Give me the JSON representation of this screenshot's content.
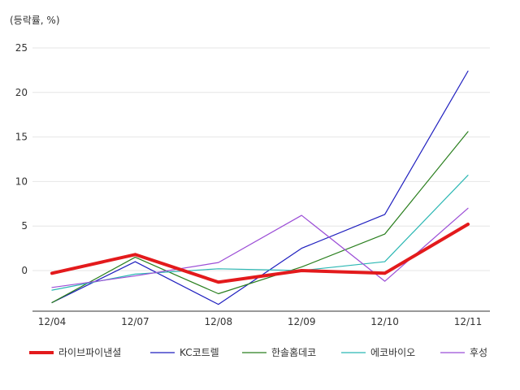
{
  "chart_data": {
    "type": "line",
    "unit_label": "(등락률, %)",
    "categories": [
      "12/04",
      "12/07",
      "12/08",
      "12/09",
      "12/10",
      "12/11"
    ],
    "ylim": [
      -4,
      25
    ],
    "yticks": [
      0,
      5,
      10,
      15,
      20,
      25
    ],
    "grid": true,
    "legend_position": "bottom",
    "series": [
      {
        "name": "라이브파이낸셜",
        "color": "#e31a1c",
        "values": [
          -0.3,
          1.8,
          -1.3,
          0.0,
          -0.3,
          5.2
        ],
        "highlight": true
      },
      {
        "name": "KC코트렐",
        "color": "#1f1fbf",
        "values": [
          -3.6,
          1.0,
          -3.8,
          2.5,
          6.3,
          22.4
        ]
      },
      {
        "name": "한솔홈데코",
        "color": "#2a7f1e",
        "values": [
          -3.6,
          1.5,
          -2.6,
          0.4,
          4.1,
          15.6
        ]
      },
      {
        "name": "에코바이오",
        "color": "#2bb7b3",
        "values": [
          -2.2,
          -0.4,
          0.2,
          0.0,
          1.0,
          10.7
        ]
      },
      {
        "name": "후성",
        "color": "#9b4dd6",
        "values": [
          -1.9,
          -0.6,
          0.9,
          6.2,
          -1.2,
          7.0
        ]
      }
    ]
  }
}
